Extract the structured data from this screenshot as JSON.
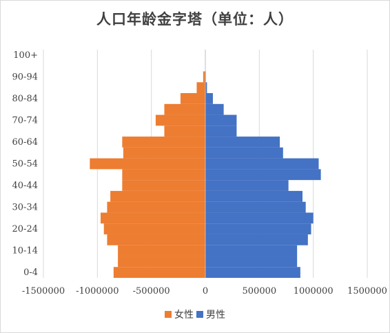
{
  "chart_data": {
    "type": "bar",
    "orientation": "horizontal",
    "title": "人口年龄金字塔（单位：人）",
    "categories": [
      "0-4",
      "5-9",
      "10-14",
      "15-19",
      "20-24",
      "25-29",
      "30-34",
      "35-39",
      "40-44",
      "45-49",
      "50-54",
      "55-59",
      "60-64",
      "65-69",
      "70-74",
      "75-79",
      "80-84",
      "85-89",
      "90-94",
      "95-99",
      "100+"
    ],
    "y_tick_labels": [
      "0-4",
      "10-14",
      "20-24",
      "30-34",
      "40-44",
      "50-54",
      "60-64",
      "70-74",
      "80-84",
      "90-94",
      "100+"
    ],
    "x_tick_labels": [
      "-1500000",
      "-1000000",
      "-500000",
      "0",
      "500000",
      "1000000",
      "1500000"
    ],
    "xlim": [
      -1500000,
      1500000
    ],
    "x_ticks": [
      -1500000,
      -1000000,
      -500000,
      0,
      500000,
      1000000,
      1500000
    ],
    "grid": true,
    "legend_position": "bottom",
    "series": [
      {
        "name": "女性",
        "color": "#ED7D31",
        "values": [
          -850000,
          -810000,
          -810000,
          -910000,
          -940000,
          -970000,
          -910000,
          -880000,
          -770000,
          -770000,
          -1070000,
          -760000,
          -770000,
          -380000,
          -460000,
          -380000,
          -230000,
          -80000,
          -20000,
          0,
          0
        ]
      },
      {
        "name": "男性",
        "color": "#4472C4",
        "values": [
          880000,
          850000,
          850000,
          950000,
          980000,
          1000000,
          930000,
          900000,
          770000,
          1070000,
          1050000,
          720000,
          690000,
          290000,
          290000,
          170000,
          70000,
          15000,
          5000,
          0,
          0
        ]
      }
    ]
  }
}
